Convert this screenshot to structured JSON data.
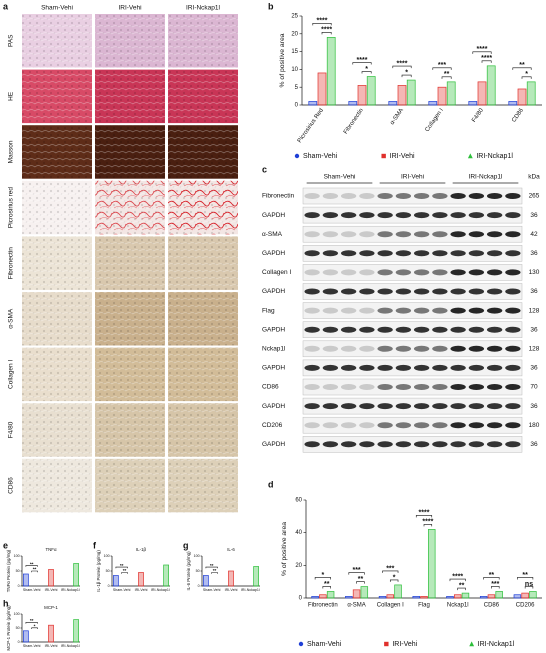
{
  "panel_a": {
    "label": "a",
    "columns": [
      "Sham-Vehi",
      "IRI-Vehi",
      "IRI-Nckap1l"
    ],
    "rows": [
      "PAS",
      "HE",
      "Masson",
      "Picrosirius red",
      "Fibronectin",
      "α-SMA",
      "Collagen I",
      "F4/80",
      "CD86"
    ]
  },
  "panel_c": {
    "label": "c",
    "groups": [
      "Sham-Vehi",
      "IRI-Vehi",
      "IRI-Nckap1l"
    ],
    "unit": "kDa",
    "rows": [
      {
        "name": "Fibronectin",
        "kda": "265"
      },
      {
        "name": "GAPDH",
        "kda": "36"
      },
      {
        "name": "α-SMA",
        "kda": "42"
      },
      {
        "name": "GAPDH",
        "kda": "36"
      },
      {
        "name": "Collagen I",
        "kda": "130"
      },
      {
        "name": "GAPDH",
        "kda": "36"
      },
      {
        "name": "Flag",
        "kda": "128"
      },
      {
        "name": "GAPDH",
        "kda": "36"
      },
      {
        "name": "Nckap1l",
        "kda": "128"
      },
      {
        "name": "GAPDH",
        "kda": "36"
      },
      {
        "name": "CD86",
        "kda": "70"
      },
      {
        "name": "GAPDH",
        "kda": "36"
      },
      {
        "name": "CD206",
        "kda": "180"
      },
      {
        "name": "GAPDH",
        "kda": "36"
      }
    ]
  },
  "chart_data": [
    {
      "panel_label": "b",
      "type": "bar",
      "y_label": "% of positive area",
      "categories": [
        "Picrosirius Red",
        "Fibronectin",
        "α-SMA",
        "Collagen I",
        "F4/80",
        "CD86"
      ],
      "series": [
        {
          "name": "Sham-Vehi",
          "color": "#1f3fd6",
          "values": [
            1,
            1,
            1,
            1,
            1,
            1
          ]
        },
        {
          "name": "IRI-Vehi",
          "color": "#e0302c",
          "values": [
            9,
            5.5,
            5.5,
            5,
            6.5,
            4.5
          ]
        },
        {
          "name": "IRI-Nckap1l",
          "color": "#2dbf3a",
          "values": [
            19,
            8,
            7,
            6.5,
            11,
            6.5
          ]
        }
      ],
      "ylim": [
        0,
        25
      ],
      "yticks": [
        0,
        5,
        10,
        15,
        20,
        25
      ],
      "annotations": [
        [
          "****",
          "****"
        ],
        [
          "****",
          "*"
        ],
        [
          "****",
          "*"
        ],
        [
          "***",
          "**"
        ],
        [
          "****",
          "****"
        ],
        [
          "**",
          "*"
        ]
      ],
      "legend": "bottom"
    },
    {
      "panel_label": "d",
      "type": "bar",
      "y_label": "% of positive area",
      "categories": [
        "Fibronectin",
        "α-SMA",
        "Collagen I",
        "Flag",
        "Nckap1l",
        "CD86",
        "CD206"
      ],
      "series": [
        {
          "name": "Sham-Vehi",
          "color": "#1f3fd6",
          "values": [
            1,
            1,
            1,
            1,
            1,
            1,
            2
          ]
        },
        {
          "name": "IRI-Vehi",
          "color": "#e0302c",
          "values": [
            2,
            5,
            2,
            1,
            2,
            2,
            3
          ]
        },
        {
          "name": "IRI-Nckap1l",
          "color": "#2dbf3a",
          "values": [
            4,
            7,
            8,
            42,
            3,
            4,
            4
          ]
        }
      ],
      "ylim": [
        0,
        60
      ],
      "yticks": [
        0,
        20,
        40,
        60
      ],
      "annotations": [
        [
          "*",
          "**"
        ],
        [
          "***",
          "**"
        ],
        [
          "***",
          "*"
        ],
        [
          "****",
          "****"
        ],
        [
          "****",
          "**"
        ],
        [
          "**",
          "***"
        ],
        [
          "**",
          "ns"
        ]
      ],
      "legend": "bottom"
    },
    {
      "panel_label": "e",
      "type": "bar",
      "title": "TNFα",
      "y_label": "TNFα Protein (pg/mg)",
      "categories": [
        "Sham-Vehi",
        "IRI-Vehi",
        "IRI-Nckap1l"
      ],
      "series": [
        {
          "name": "Sham-Vehi",
          "color": "#1f3fd6",
          "values": [
            40,
            null,
            null
          ]
        },
        {
          "name": "IRI-Vehi",
          "color": "#e0302c",
          "values": [
            null,
            55,
            null
          ]
        },
        {
          "name": "IRI-Nckap1l",
          "color": "#2dbf3a",
          "values": [
            null,
            null,
            75
          ]
        }
      ],
      "ylim": [
        0,
        100
      ],
      "yticks": [
        0,
        50,
        100
      ],
      "annotations": [
        [
          "**",
          "**"
        ]
      ]
    },
    {
      "panel_label": "f",
      "type": "bar",
      "title": "IL-1β",
      "y_label": "IL-1β Protein (pg/mg)",
      "categories": [
        "Sham-Vehi",
        "IRI-Vehi",
        "IRI-Nckap1l"
      ],
      "series": [
        {
          "name": "Sham-Vehi",
          "color": "#1f3fd6",
          "values": [
            35,
            null,
            null
          ]
        },
        {
          "name": "IRI-Vehi",
          "color": "#e0302c",
          "values": [
            null,
            45,
            null
          ]
        },
        {
          "name": "IRI-Nckap1l",
          "color": "#2dbf3a",
          "values": [
            null,
            null,
            70
          ]
        }
      ],
      "ylim": [
        0,
        100
      ],
      "yticks": [
        0,
        50,
        100
      ],
      "annotations": [
        [
          "**",
          "**"
        ]
      ]
    },
    {
      "panel_label": "g",
      "type": "bar",
      "title": "IL-6",
      "y_label": "IL-6 Protein (pg/mg)",
      "categories": [
        "Sham-Vehi",
        "IRI-Vehi",
        "IRI-Nckap1l"
      ],
      "series": [
        {
          "name": "Sham-Vehi",
          "color": "#1f3fd6",
          "values": [
            35,
            null,
            null
          ]
        },
        {
          "name": "IRI-Vehi",
          "color": "#e0302c",
          "values": [
            null,
            50,
            null
          ]
        },
        {
          "name": "IRI-Nckap1l",
          "color": "#2dbf3a",
          "values": [
            null,
            null,
            65
          ]
        }
      ],
      "ylim": [
        0,
        100
      ],
      "yticks": [
        0,
        50,
        100
      ],
      "annotations": [
        [
          "**",
          "**"
        ]
      ]
    },
    {
      "panel_label": "h",
      "type": "bar",
      "title": "MCP-1",
      "y_label": "MCP-1 Protein (pg/mg)",
      "categories": [
        "Sham-Vehi",
        "IRI-Vehi",
        "IRI-Nckap1l"
      ],
      "series": [
        {
          "name": "Sham-Vehi",
          "color": "#1f3fd6",
          "values": [
            40,
            null,
            null
          ]
        },
        {
          "name": "IRI-Vehi",
          "color": "#e0302c",
          "values": [
            null,
            60,
            null
          ]
        },
        {
          "name": "IRI-Nckap1l",
          "color": "#2dbf3a",
          "values": [
            null,
            null,
            80
          ]
        }
      ],
      "ylim": [
        0,
        100
      ],
      "yticks": [
        0,
        50,
        100
      ],
      "annotations": [
        [
          "**",
          "*"
        ]
      ]
    }
  ]
}
